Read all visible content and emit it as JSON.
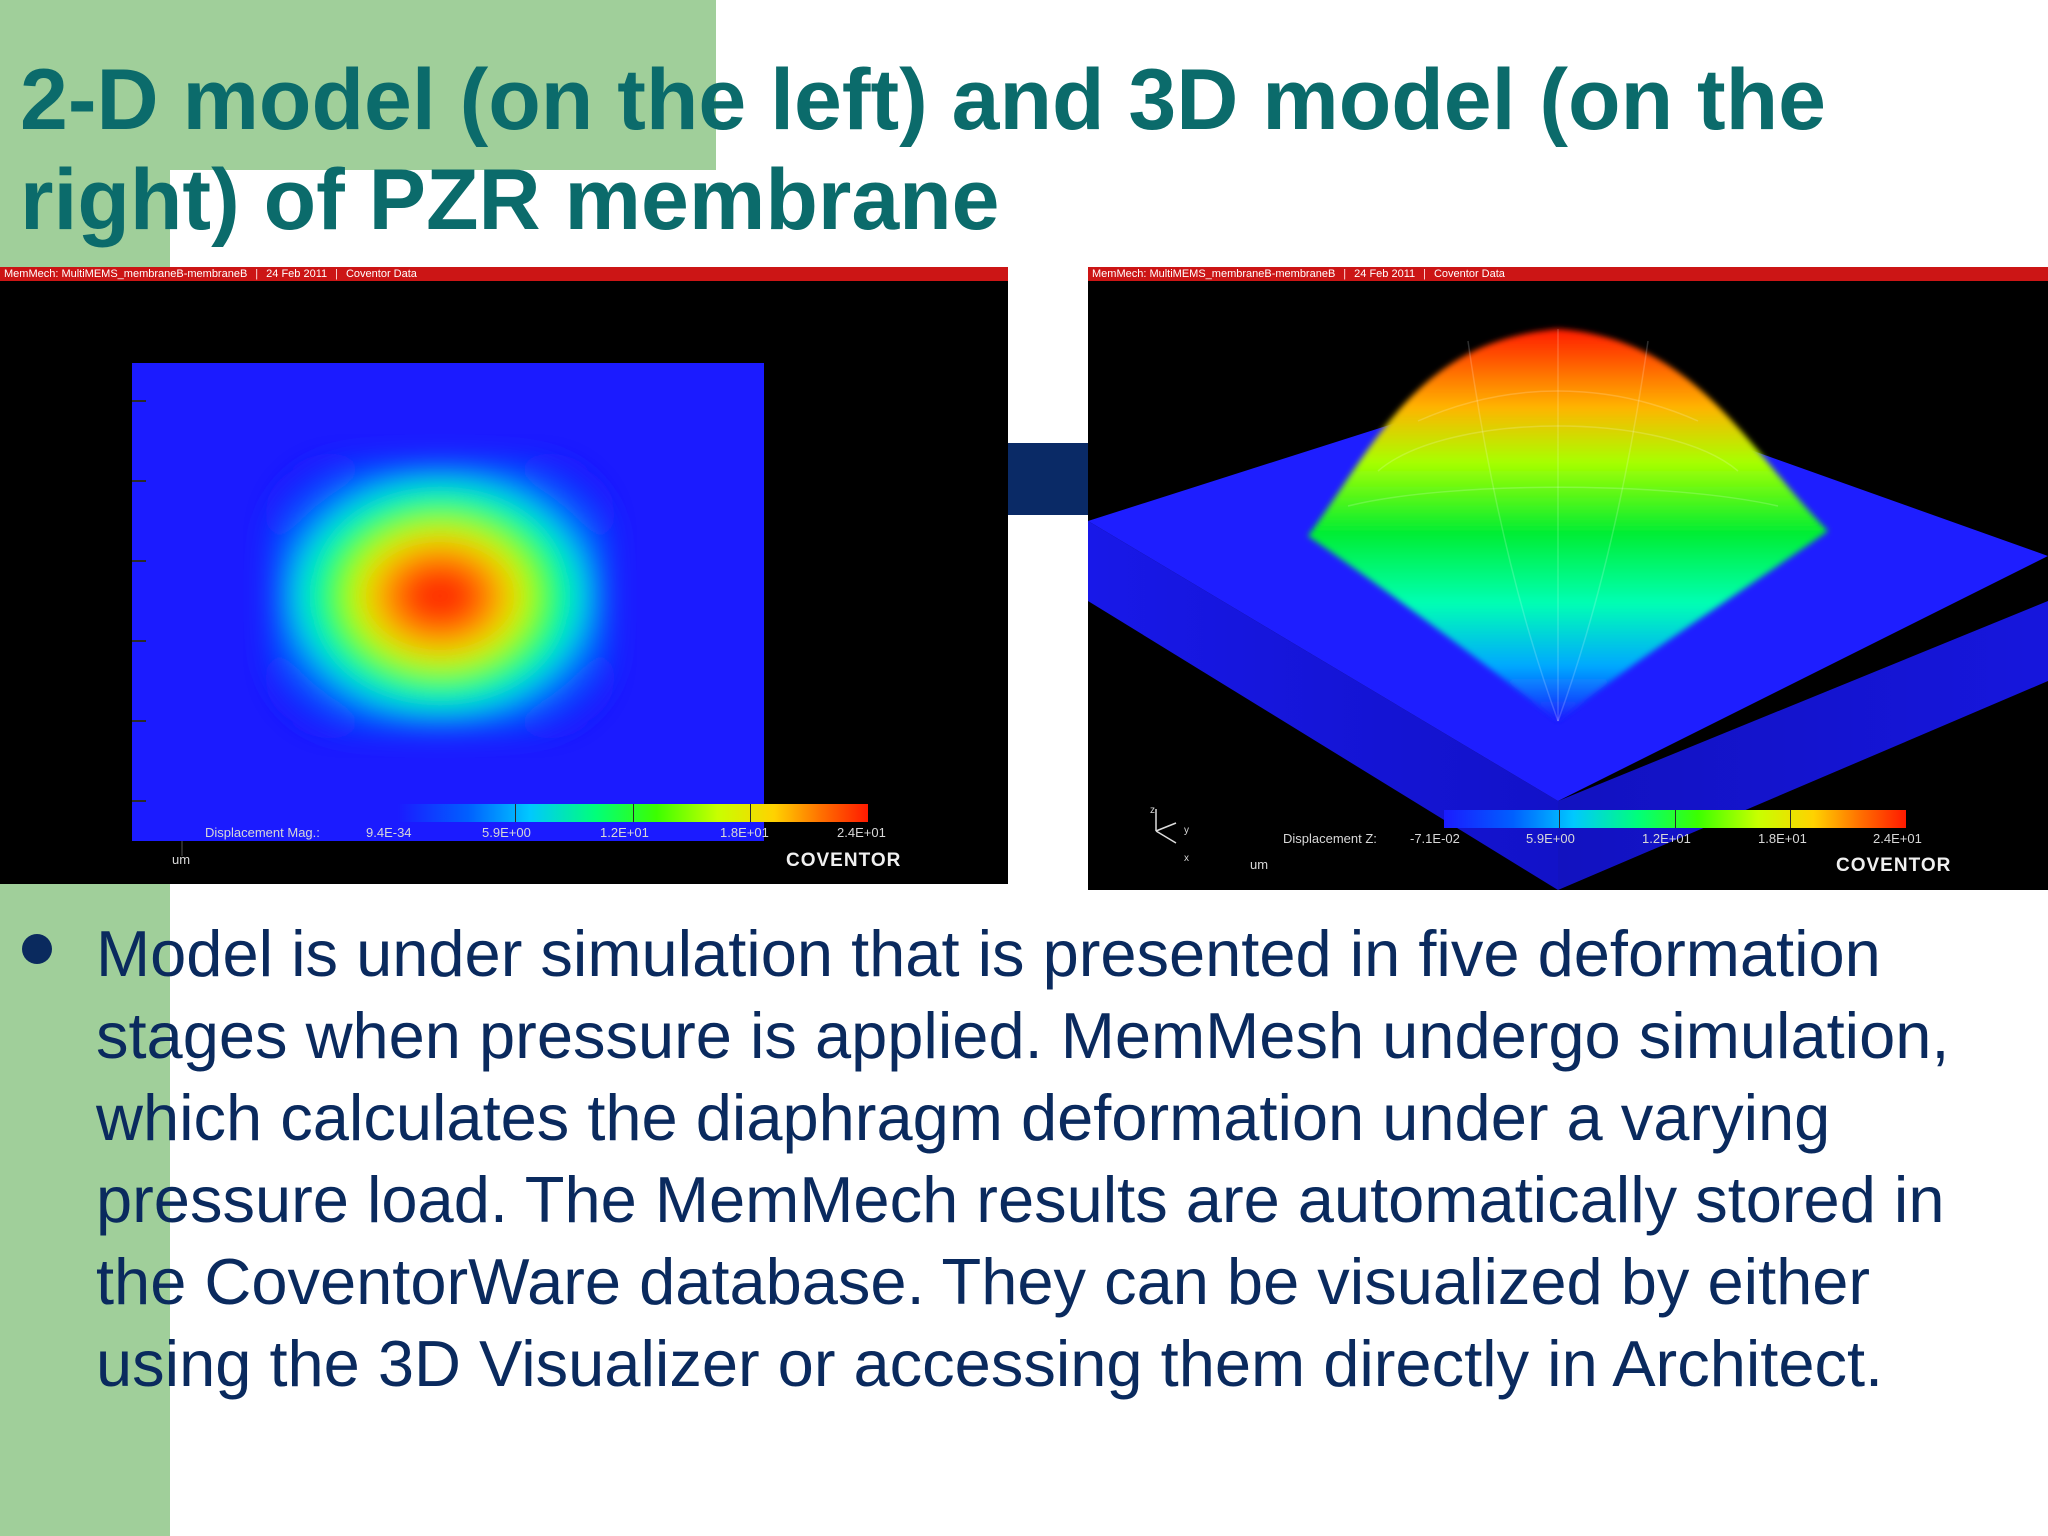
{
  "slide": {
    "title": "2-D model (on the left) and 3D model (on the right) of PZR membrane",
    "bullet": "Model is under simulation that is presented in five deformation stages when pressure is applied. MemMesh undergo simulation, which calculates the diaphragm deformation under a varying pressure load. The MemMech results are automatically stored in the CoventorWare database. They can be visualized by either using the 3D Visualizer or accessing them directly in Architect."
  },
  "left_view": {
    "titlebar": [
      "MemMech: MultiMEMS_membraneB-membraneB",
      "24 Feb 2011",
      "Coventor Data"
    ],
    "legend_label": "Displacement Mag.:",
    "ticks": [
      "9.4E-34",
      "5.9E+00",
      "1.2E+01",
      "1.8E+01",
      "2.4E+01"
    ],
    "unit": "um",
    "brand": "COVENTOR"
  },
  "right_view": {
    "titlebar": [
      "MemMech: MultiMEMS_membraneB-membraneB",
      "24 Feb 2011",
      "Coventor Data"
    ],
    "legend_label": "Displacement Z:",
    "ticks": [
      "-7.1E-02",
      "5.9E+00",
      "1.2E+01",
      "1.8E+01",
      "2.4E+01"
    ],
    "unit": "um",
    "brand": "COVENTOR",
    "axes": [
      "z",
      "y",
      "x"
    ]
  },
  "colors": {
    "title": "#0b6b6b",
    "body": "#0a2a5e",
    "accent_green": "#a0cf9a",
    "titlebar_red": "#cc1515"
  }
}
